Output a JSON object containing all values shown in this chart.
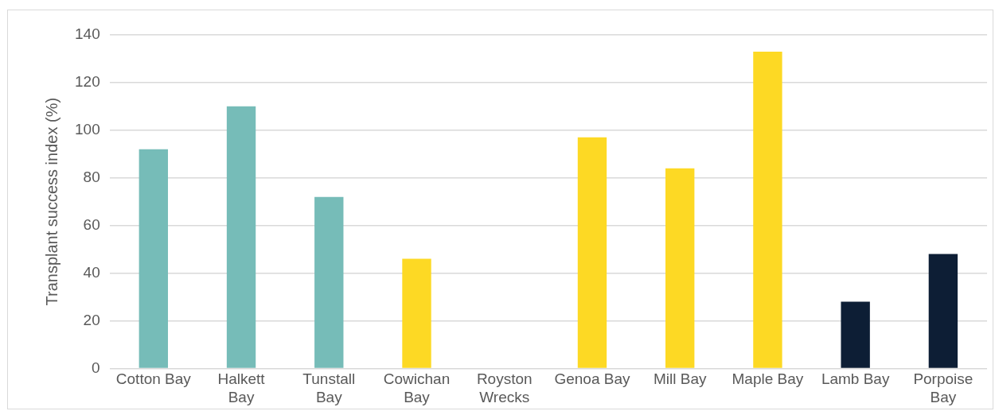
{
  "chart_data": {
    "type": "bar",
    "ylabel": "Transplant success index (%)",
    "categories": [
      "Cotton Bay",
      "Halkett Bay",
      "Tunstall Bay",
      "Cowichan Bay",
      "Royston Wrecks",
      "Genoa Bay",
      "Mill Bay",
      "Maple Bay",
      "Lamb Bay",
      "Porpoise Bay"
    ],
    "values": [
      92,
      110,
      72,
      46,
      null,
      97,
      84,
      133,
      28,
      48
    ],
    "colors": [
      "#76bcb8",
      "#76bcb8",
      "#76bcb8",
      "#fdd924",
      "#fdd924",
      "#fdd924",
      "#fdd924",
      "#fdd924",
      "#0d1e35",
      "#0d1e35"
    ],
    "ylim": [
      0,
      140
    ],
    "yticks": [
      0,
      20,
      40,
      60,
      80,
      100,
      120,
      140
    ],
    "grid": "y"
  }
}
